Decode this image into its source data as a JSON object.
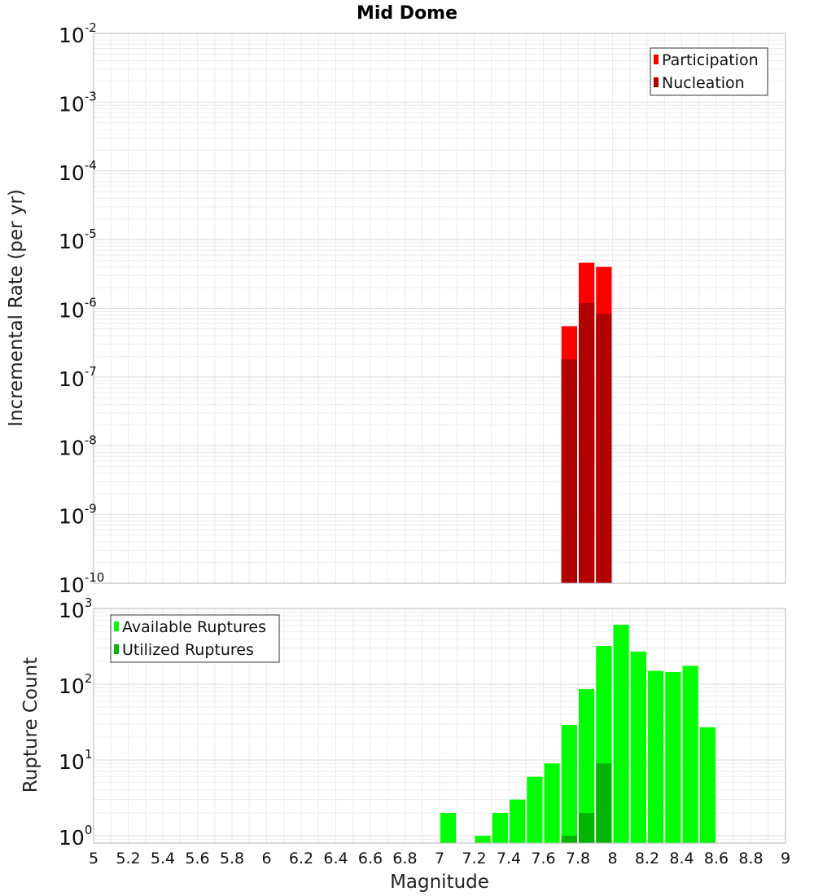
{
  "chart_data": [
    {
      "type": "bar",
      "title": "Mid Dome",
      "xlabel": "",
      "ylabel": "Incremental Rate (per yr)",
      "yscale": "log",
      "xlim": [
        5,
        9
      ],
      "ylim": [
        1e-10,
        0.01
      ],
      "y_tick_mantissa": "10",
      "y_tick_exponents": [
        "-10",
        "-9",
        "-8",
        "-7",
        "-6",
        "-5",
        "-4",
        "-3",
        "-2"
      ],
      "grid": true,
      "legend_position": "top-right",
      "bar_width": 0.1,
      "series": [
        {
          "name": "Participation",
          "color": "#ff0000",
          "x": [
            7.75,
            7.85,
            7.95
          ],
          "values": [
            5.5e-07,
            4.6e-06,
            4e-06
          ]
        },
        {
          "name": "Nucleation",
          "color": "#b00000",
          "x": [
            7.75,
            7.85,
            7.95
          ],
          "values": [
            1.8e-07,
            1.2e-06,
            8.3e-07
          ]
        }
      ]
    },
    {
      "type": "bar",
      "title": "",
      "xlabel": "Magnitude",
      "ylabel": "Rupture Count",
      "yscale": "log",
      "xlim": [
        5,
        9
      ],
      "ylim": [
        0.8,
        1000
      ],
      "x_tick_labels": [
        "5",
        "5.2",
        "5.4",
        "5.6",
        "5.8",
        "6",
        "6.2",
        "6.4",
        "6.6",
        "6.8",
        "7",
        "7.2",
        "7.4",
        "7.6",
        "7.8",
        "8",
        "8.2",
        "8.4",
        "8.6",
        "8.8",
        "9"
      ],
      "y_tick_mantissa": "10",
      "y_tick_exponents": [
        "0",
        "1",
        "2",
        "3"
      ],
      "grid": true,
      "legend_position": "top-left",
      "bar_width": 0.1,
      "series": [
        {
          "name": "Available Ruptures",
          "color": "#00ff00",
          "x": [
            7.05,
            7.25,
            7.35,
            7.45,
            7.55,
            7.65,
            7.75,
            7.85,
            7.95,
            8.05,
            8.15,
            8.25,
            8.35,
            8.45,
            8.55
          ],
          "values": [
            2,
            1,
            2,
            3,
            6,
            9,
            29,
            86,
            320,
            610,
            270,
            150,
            145,
            175,
            27
          ]
        },
        {
          "name": "Utilized Ruptures",
          "color": "#00b400",
          "x": [
            7.75,
            7.85,
            7.95
          ],
          "values": [
            1,
            2,
            9
          ]
        }
      ]
    }
  ]
}
